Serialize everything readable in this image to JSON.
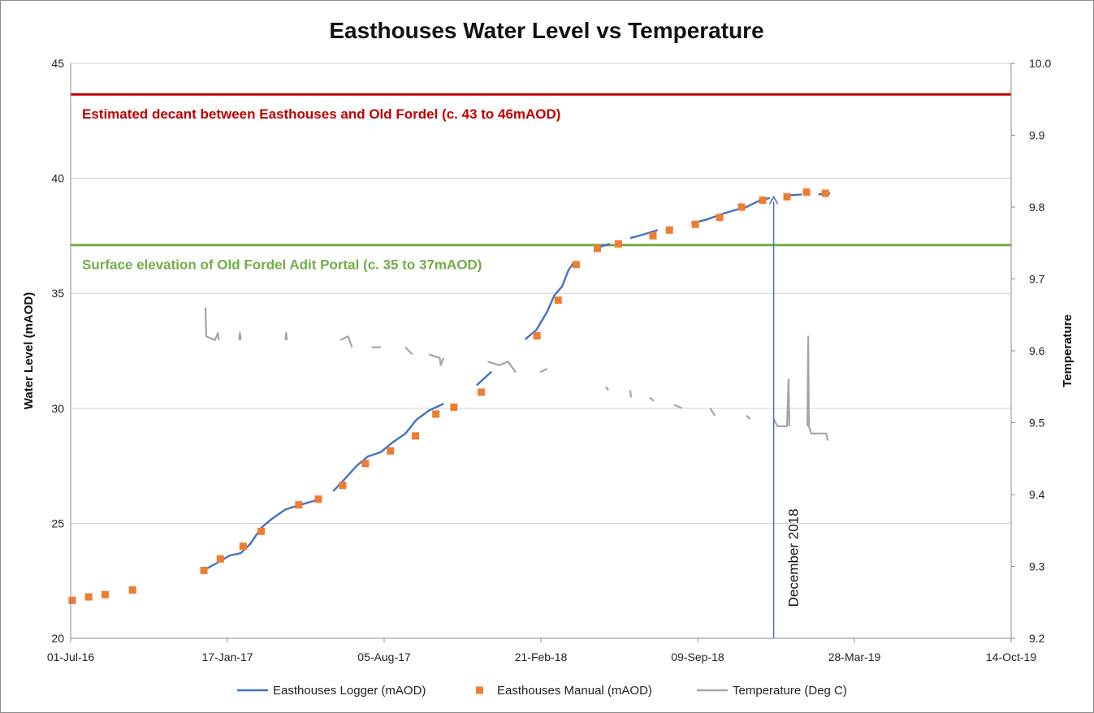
{
  "chart_data": {
    "type": "line",
    "title": "Easthouses Water Level vs Temperature",
    "xlabel": "",
    "ylabel_left": "Water Level (mAOD)",
    "ylabel_right": "Temperature",
    "x_ticks": [
      "01-Jul-16",
      "17-Jan-17",
      "05-Aug-17",
      "21-Feb-18",
      "09-Sep-18",
      "28-Mar-19",
      "14-Oct-19"
    ],
    "x_range": [
      "01-Jul-16",
      "14-Oct-19"
    ],
    "y_left_ticks": [
      "20",
      "25",
      "30",
      "35",
      "40",
      "45"
    ],
    "y_left_range": [
      20,
      45
    ],
    "y_right_ticks": [
      "9.2",
      "9.3",
      "9.4",
      "9.5",
      "9.6",
      "9.7",
      "9.8",
      "9.9",
      "10.0"
    ],
    "y_right_range": [
      9.2,
      10.0
    ],
    "grid": "horizontal",
    "legend_position": "bottom",
    "reference_lines": [
      {
        "label": "Estimated decant between Easthouses and Old Fordel (c. 43 to 46mAOD)",
        "y": 43.65,
        "color": "#c00000"
      },
      {
        "label": "Surface elevation of Old Fordel Adit Portal (c. 35 to 37mAOD)",
        "y": 37.1,
        "color": "#70ad47"
      }
    ],
    "annotation": {
      "label": "December 2018",
      "x": "2018-12-15",
      "y_from": 20,
      "y_to": 39.2,
      "color": "#4472c4"
    },
    "series": [
      {
        "name": "Easthouses Logger (mAOD)",
        "axis": "left",
        "style": "line",
        "color": "#4472c4",
        "points": [
          [
            "2016-12-20",
            23.0
          ],
          [
            "2017-01-05",
            23.3
          ],
          [
            "2017-01-20",
            23.6
          ],
          [
            "2017-02-03",
            23.7
          ],
          [
            "2017-02-15",
            24.1
          ],
          [
            "2017-03-01",
            24.8
          ],
          [
            "2017-03-15",
            25.2
          ],
          [
            "2017-04-01",
            25.6
          ],
          [
            "2017-04-20",
            25.8
          ],
          [
            "2017-05-10",
            26.0
          ],
          [
            "2017-06-01",
            26.4
          ],
          [
            "2017-06-15",
            26.9
          ],
          [
            "2017-07-01",
            27.5
          ],
          [
            "2017-07-15",
            27.9
          ],
          [
            "2017-08-01",
            28.1
          ],
          [
            "2017-08-15",
            28.5
          ],
          [
            "2017-09-01",
            28.9
          ],
          [
            "2017-09-15",
            29.5
          ],
          [
            "2017-10-01",
            29.9
          ],
          [
            "2017-10-20",
            30.2
          ],
          [
            "2017-11-10",
            30.5
          ],
          [
            "2017-12-01",
            31.0
          ],
          [
            "2017-12-20",
            31.6
          ],
          [
            "2018-01-10",
            32.3
          ],
          [
            "2018-02-01",
            33.0
          ],
          [
            "2018-02-15",
            33.4
          ],
          [
            "2018-03-01",
            34.2
          ],
          [
            "2018-03-10",
            34.9
          ],
          [
            "2018-03-20",
            35.3
          ],
          [
            "2018-03-28",
            36.0
          ],
          [
            "2018-04-03",
            36.3
          ],
          [
            "2018-05-01",
            36.95
          ],
          [
            "2018-05-20",
            37.15
          ],
          [
            "2018-06-15",
            37.4
          ],
          [
            "2018-07-01",
            37.55
          ],
          [
            "2018-07-20",
            37.75
          ],
          [
            "2018-08-10",
            37.9
          ],
          [
            "2018-09-01",
            38.05
          ],
          [
            "2018-09-20",
            38.2
          ],
          [
            "2018-10-10",
            38.45
          ],
          [
            "2018-10-25",
            38.6
          ],
          [
            "2018-11-10",
            38.75
          ],
          [
            "2018-11-25",
            39.0
          ],
          [
            "2018-12-10",
            39.15
          ],
          [
            "2018-12-31",
            39.25
          ],
          [
            "2019-01-20",
            39.3
          ],
          [
            "2019-02-10",
            39.3
          ],
          [
            "2019-02-25",
            39.35
          ]
        ]
      },
      {
        "name": "Easthouses Manual (mAOD)",
        "axis": "left",
        "style": "marker",
        "color": "#ed7d31",
        "points": [
          [
            "2016-07-03",
            21.65
          ],
          [
            "2016-07-24",
            21.8
          ],
          [
            "2016-08-14",
            21.9
          ],
          [
            "2016-09-18",
            22.1
          ],
          [
            "2016-12-18",
            22.95
          ],
          [
            "2017-01-08",
            23.45
          ],
          [
            "2017-02-06",
            24.0
          ],
          [
            "2017-03-01",
            24.65
          ],
          [
            "2017-04-18",
            25.8
          ],
          [
            "2017-05-13",
            26.05
          ],
          [
            "2017-06-13",
            26.65
          ],
          [
            "2017-07-12",
            27.6
          ],
          [
            "2017-08-13",
            28.15
          ],
          [
            "2017-09-14",
            28.8
          ],
          [
            "2017-10-10",
            29.75
          ],
          [
            "2017-11-02",
            30.05
          ],
          [
            "2017-12-07",
            30.7
          ],
          [
            "2018-02-16",
            33.15
          ],
          [
            "2018-03-15",
            34.7
          ],
          [
            "2018-04-07",
            36.25
          ],
          [
            "2018-05-04",
            36.95
          ],
          [
            "2018-05-31",
            37.15
          ],
          [
            "2018-07-14",
            37.5
          ],
          [
            "2018-08-04",
            37.75
          ],
          [
            "2018-09-06",
            38.0
          ],
          [
            "2018-10-07",
            38.3
          ],
          [
            "2018-11-04",
            38.75
          ],
          [
            "2018-12-01",
            39.05
          ],
          [
            "2019-01-01",
            39.2
          ],
          [
            "2019-01-26",
            39.4
          ],
          [
            "2019-02-19",
            39.35
          ]
        ]
      },
      {
        "name": "Temperature  (Deg C)",
        "axis": "right",
        "style": "line",
        "color": "#a5a5a5",
        "points": [
          [
            "2016-12-20",
            9.66
          ],
          [
            "2016-12-21",
            9.62
          ],
          [
            "2017-01-01",
            9.615
          ],
          [
            "2017-01-05",
            9.625
          ],
          [
            "2017-01-06",
            9.615
          ],
          [
            "2017-02-01",
            9.615
          ],
          [
            "2017-02-02",
            9.625
          ],
          [
            "2017-02-03",
            9.615
          ],
          [
            "2017-03-01",
            9.62
          ],
          [
            "2017-04-01",
            9.615
          ],
          [
            "2017-04-02",
            9.625
          ],
          [
            "2017-04-03",
            9.615
          ],
          [
            "2017-06-10",
            9.615
          ],
          [
            "2017-06-20",
            9.62
          ],
          [
            "2017-06-25",
            9.605
          ],
          [
            "2017-07-20",
            9.605
          ],
          [
            "2017-08-01",
            9.605
          ],
          [
            "2017-09-01",
            9.605
          ],
          [
            "2017-09-10",
            9.595
          ],
          [
            "2017-10-01",
            9.595
          ],
          [
            "2017-10-15",
            9.59
          ],
          [
            "2017-10-16",
            9.58
          ],
          [
            "2017-10-20",
            9.59
          ],
          [
            "2017-11-20",
            9.585
          ],
          [
            "2017-12-15",
            9.585
          ],
          [
            "2017-12-30",
            9.58
          ],
          [
            "2018-01-10",
            9.585
          ],
          [
            "2018-01-20",
            9.57
          ],
          [
            "2018-02-20",
            9.57
          ],
          [
            "2018-03-01",
            9.575
          ],
          [
            "2018-04-07",
            9.57
          ],
          [
            "2018-05-15",
            9.55
          ],
          [
            "2018-05-18",
            9.545
          ],
          [
            "2018-06-15",
            9.545
          ],
          [
            "2018-06-16",
            9.535
          ],
          [
            "2018-07-10",
            9.535
          ],
          [
            "2018-07-15",
            9.53
          ],
          [
            "2018-08-10",
            9.525
          ],
          [
            "2018-08-20",
            9.52
          ],
          [
            "2018-09-25",
            9.52
          ],
          [
            "2018-10-01",
            9.51
          ],
          [
            "2018-11-10",
            9.51
          ],
          [
            "2018-11-15",
            9.505
          ],
          [
            "2018-12-15",
            9.505
          ],
          [
            "2018-12-20",
            9.495
          ],
          [
            "2019-01-01",
            9.495
          ],
          [
            "2019-01-03",
            9.56
          ],
          [
            "2019-01-04",
            9.495
          ],
          [
            "2019-01-27",
            9.495
          ],
          [
            "2019-01-28",
            9.62
          ],
          [
            "2019-01-29",
            9.495
          ],
          [
            "2019-02-01",
            9.485
          ],
          [
            "2019-02-20",
            9.485
          ],
          [
            "2019-02-22",
            9.475
          ]
        ]
      }
    ]
  }
}
